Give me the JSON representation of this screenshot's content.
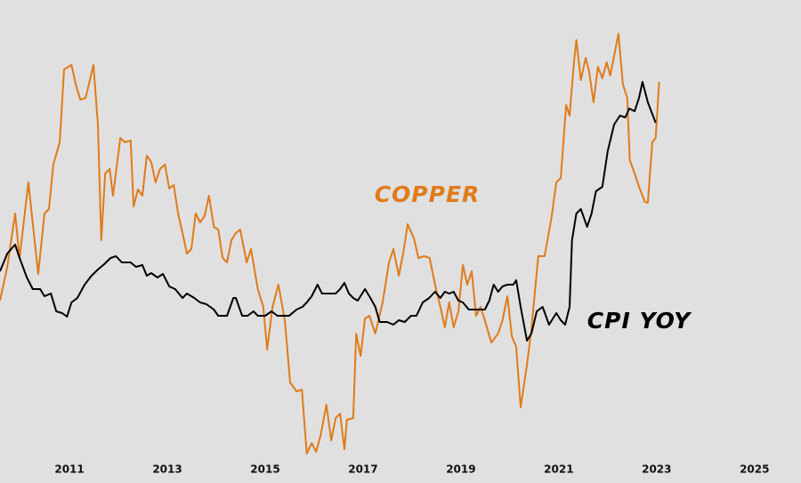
{
  "chart_data": {
    "type": "line",
    "xlim": [
      2009.58,
      2025.95
    ],
    "xticks": [
      2011,
      2013,
      2015,
      2017,
      2019,
      2021,
      2023,
      2025
    ],
    "series": [
      {
        "name": "COPPER",
        "color": "#e07b1a",
        "x": [
          2009.58,
          2009.73,
          2009.89,
          2009.98,
          2010.16,
          2010.36,
          2010.49,
          2010.58,
          2010.67,
          2010.8,
          2010.89,
          2011.04,
          2011.13,
          2011.22,
          2011.33,
          2011.49,
          2011.58,
          2011.65,
          2011.73,
          2011.82,
          2011.89,
          2012.04,
          2012.13,
          2012.25,
          2012.31,
          2012.4,
          2012.49,
          2012.58,
          2012.67,
          2012.76,
          2012.85,
          2012.95,
          2013.04,
          2013.13,
          2013.22,
          2013.31,
          2013.4,
          2013.49,
          2013.58,
          2013.67,
          2013.76,
          2013.85,
          2013.95,
          2014.04,
          2014.13,
          2014.22,
          2014.31,
          2014.4,
          2014.49,
          2014.62,
          2014.71,
          2014.85,
          2014.96,
          2015.04,
          2015.15,
          2015.27,
          2015.4,
          2015.51,
          2015.64,
          2015.75,
          2015.85,
          2015.95,
          2016.04,
          2016.13,
          2016.25,
          2016.35,
          2016.44,
          2016.53,
          2016.62,
          2016.67,
          2016.8,
          2016.86,
          2016.95,
          2017.04,
          2017.13,
          2017.25,
          2017.4,
          2017.53,
          2017.62,
          2017.73,
          2017.82,
          2017.91,
          2018.04,
          2018.13,
          2018.25,
          2018.36,
          2018.49,
          2018.58,
          2018.67,
          2018.76,
          2018.85,
          2018.95,
          2019.04,
          2019.13,
          2019.22,
          2019.31,
          2019.4,
          2019.49,
          2019.62,
          2019.76,
          2019.85,
          2019.95,
          2020.04,
          2020.13,
          2020.22,
          2020.35,
          2020.44,
          2020.58,
          2020.71,
          2020.85,
          2020.95,
          2021.04,
          2021.15,
          2021.22,
          2021.31,
          2021.36,
          2021.45,
          2021.55,
          2021.62,
          2021.71,
          2021.8,
          2021.89,
          2021.98,
          2022.05,
          2022.13,
          2022.22,
          2022.31,
          2022.4,
          2022.45,
          2022.55,
          2022.64,
          2022.76,
          2022.82,
          2022.91,
          2022.98,
          2023.05
        ],
        "values": [
          36.4,
          44,
          56,
          46,
          63,
          42.4,
          56,
          57,
          67,
          72,
          88.4,
          89.4,
          85,
          81.6,
          82,
          89.4,
          76,
          50,
          65,
          66,
          60,
          73,
          72,
          72.4,
          57.6,
          61.4,
          60,
          69,
          67.6,
          63,
          66,
          67,
          61.6,
          62.4,
          56,
          51.6,
          47,
          48,
          56,
          54,
          55.4,
          60,
          53,
          52.4,
          46,
          45,
          50,
          51.6,
          52.4,
          45,
          48,
          39,
          35,
          25.4,
          35,
          40,
          32,
          18,
          16,
          16.4,
          2,
          4.4,
          2.4,
          6,
          13,
          5,
          10,
          11,
          3,
          9.6,
          10,
          29,
          24,
          32.4,
          33,
          29,
          36,
          45,
          48,
          42,
          47,
          53.6,
          50.4,
          46,
          46.4,
          46,
          39,
          35,
          30.4,
          36,
          30.4,
          34,
          44.4,
          40,
          43,
          33,
          35,
          32,
          27,
          29,
          32,
          37.4,
          28.4,
          26,
          12.4,
          22,
          30,
          46.4,
          46.4,
          55,
          63,
          64,
          80.4,
          78,
          90,
          95,
          86,
          91,
          88,
          81,
          89,
          86.4,
          90,
          87,
          91.4,
          96.4,
          85,
          82,
          68,
          65,
          62,
          58.6,
          58.4,
          72,
          73,
          85.6
        ]
      },
      {
        "name": "CPI YOY",
        "color": "#000000",
        "x": [
          2009.58,
          2009.73,
          2009.89,
          2009.98,
          2010.13,
          2010.25,
          2010.4,
          2010.49,
          2010.62,
          2010.73,
          2010.85,
          2010.95,
          2011.04,
          2011.16,
          2011.31,
          2011.45,
          2011.58,
          2011.71,
          2011.84,
          2011.95,
          2012.07,
          2012.25,
          2012.36,
          2012.49,
          2012.58,
          2012.67,
          2012.8,
          2012.91,
          2013.04,
          2013.16,
          2013.31,
          2013.4,
          2013.55,
          2013.67,
          2013.8,
          2013.95,
          2014.04,
          2014.22,
          2014.35,
          2014.4,
          2014.53,
          2014.64,
          2014.76,
          2014.85,
          2015.0,
          2015.13,
          2015.25,
          2015.36,
          2015.49,
          2015.64,
          2015.76,
          2015.85,
          2015.95,
          2016.07,
          2016.16,
          2016.31,
          2016.44,
          2016.53,
          2016.62,
          2016.71,
          2016.8,
          2016.89,
          2017.04,
          2017.15,
          2017.25,
          2017.34,
          2017.49,
          2017.62,
          2017.73,
          2017.85,
          2017.98,
          2018.09,
          2018.22,
          2018.35,
          2018.47,
          2018.58,
          2018.67,
          2018.76,
          2018.85,
          2018.95,
          2019.04,
          2019.16,
          2019.31,
          2019.49,
          2019.58,
          2019.67,
          2019.76,
          2019.85,
          2019.95,
          2020.07,
          2020.13,
          2020.22,
          2020.35,
          2020.44,
          2020.55,
          2020.67,
          2020.8,
          2020.95,
          2021.04,
          2021.13,
          2021.22,
          2021.27,
          2021.36,
          2021.45,
          2021.58,
          2021.67,
          2021.76,
          2021.89,
          2022.0,
          2022.13,
          2022.25,
          2022.36,
          2022.44,
          2022.55,
          2022.64,
          2022.71,
          2022.82,
          2022.98
        ],
        "values": [
          43,
          47,
          49,
          46,
          41.6,
          39,
          39,
          37.4,
          38,
          34,
          33.6,
          32.8,
          36,
          37,
          40,
          42,
          43.4,
          44.6,
          46,
          46.4,
          45,
          45,
          44,
          44.4,
          42,
          42.6,
          41.6,
          42.4,
          39.6,
          39,
          37,
          38,
          37,
          36,
          35.6,
          34.4,
          33,
          33,
          37,
          37,
          33,
          33,
          34,
          33,
          33,
          34,
          33,
          33,
          33,
          34.4,
          35,
          36,
          37.4,
          40,
          38,
          38,
          38,
          39,
          40.4,
          38,
          37,
          36.4,
          39,
          37,
          35,
          31.6,
          31.6,
          31,
          32,
          31.6,
          33,
          33,
          36,
          37,
          38.4,
          37,
          38.4,
          38,
          38.4,
          36.4,
          36,
          34.4,
          34.4,
          34.4,
          36.4,
          40,
          38.4,
          39.6,
          40,
          40,
          41,
          35,
          27.4,
          29,
          34,
          35,
          31,
          33.6,
          32,
          31,
          35,
          50,
          56,
          57,
          53,
          56,
          61,
          62,
          70,
          76,
          78,
          77.6,
          79.6,
          79,
          82,
          85.6,
          81,
          76.4
        ]
      }
    ]
  }
}
